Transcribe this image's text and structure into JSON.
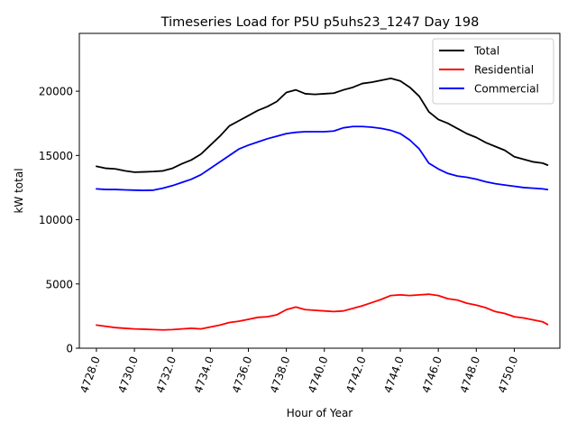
{
  "chart_data": {
    "type": "line",
    "title": "Timeseries Load for P5U p5uhs23_1247  Day 198",
    "xlabel": "Hour of Year",
    "ylabel": "kW total",
    "xlim": [
      4727.1,
      4752.4
    ],
    "ylim": [
      0,
      24500
    ],
    "xticks": [
      4728,
      4730,
      4732,
      4734,
      4736,
      4738,
      4740,
      4742,
      4744,
      4746,
      4748,
      4750
    ],
    "xtick_labels": [
      "4728.0",
      "4730.0",
      "4732.0",
      "4734.0",
      "4736.0",
      "4738.0",
      "4740.0",
      "4742.0",
      "4744.0",
      "4746.0",
      "4748.0",
      "4750.0"
    ],
    "yticks": [
      0,
      5000,
      10000,
      15000,
      20000
    ],
    "ytick_labels": [
      "0",
      "5000",
      "10000",
      "15000",
      "20000"
    ],
    "grid": false,
    "legend_position": "top-right",
    "x": [
      4728.0,
      4728.5,
      4729.0,
      4729.5,
      4730.0,
      4730.5,
      4731.0,
      4731.5,
      4732.0,
      4732.5,
      4733.0,
      4733.5,
      4734.0,
      4734.5,
      4735.0,
      4735.5,
      4736.0,
      4736.5,
      4737.0,
      4737.5,
      4738.0,
      4738.5,
      4739.0,
      4739.5,
      4740.0,
      4740.5,
      4741.0,
      4741.5,
      4742.0,
      4742.5,
      4743.0,
      4743.5,
      4744.0,
      4744.5,
      4745.0,
      4745.5,
      4746.0,
      4746.5,
      4747.0,
      4747.5,
      4748.0,
      4748.5,
      4749.0,
      4749.5,
      4750.0,
      4750.5,
      4751.0,
      4751.5,
      4751.75
    ],
    "series": [
      {
        "name": "Total",
        "color": "#000000",
        "values": [
          14150,
          14000,
          13950,
          13800,
          13700,
          13720,
          13750,
          13800,
          14000,
          14350,
          14650,
          15100,
          15800,
          16500,
          17300,
          17700,
          18100,
          18500,
          18800,
          19200,
          19900,
          20100,
          19800,
          19750,
          19800,
          19850,
          20100,
          20300,
          20600,
          20700,
          20850,
          21000,
          20800,
          20300,
          19600,
          18400,
          17800,
          17500,
          17100,
          16700,
          16400,
          16000,
          15700,
          15400,
          14900,
          14700,
          14500,
          14400,
          14250
        ]
      },
      {
        "name": "Residential",
        "color": "#ff0000",
        "values": [
          1800,
          1700,
          1600,
          1550,
          1500,
          1480,
          1450,
          1420,
          1450,
          1500,
          1550,
          1500,
          1650,
          1800,
          2000,
          2100,
          2250,
          2400,
          2450,
          2600,
          3000,
          3200,
          3000,
          2950,
          2900,
          2850,
          2900,
          3100,
          3300,
          3550,
          3800,
          4100,
          4150,
          4100,
          4150,
          4200,
          4100,
          3850,
          3750,
          3500,
          3350,
          3150,
          2850,
          2700,
          2450,
          2350,
          2200,
          2050,
          1850
        ]
      },
      {
        "name": "Commercial",
        "color": "#0000ff",
        "values": [
          12400,
          12350,
          12350,
          12320,
          12300,
          12280,
          12300,
          12450,
          12650,
          12900,
          13150,
          13500,
          14000,
          14500,
          15000,
          15500,
          15800,
          16050,
          16300,
          16500,
          16700,
          16800,
          16850,
          16850,
          16850,
          16900,
          17150,
          17250,
          17250,
          17200,
          17100,
          16950,
          16700,
          16200,
          15500,
          14400,
          13950,
          13600,
          13400,
          13300,
          13150,
          12950,
          12800,
          12700,
          12600,
          12500,
          12450,
          12400,
          12350
        ]
      }
    ]
  }
}
